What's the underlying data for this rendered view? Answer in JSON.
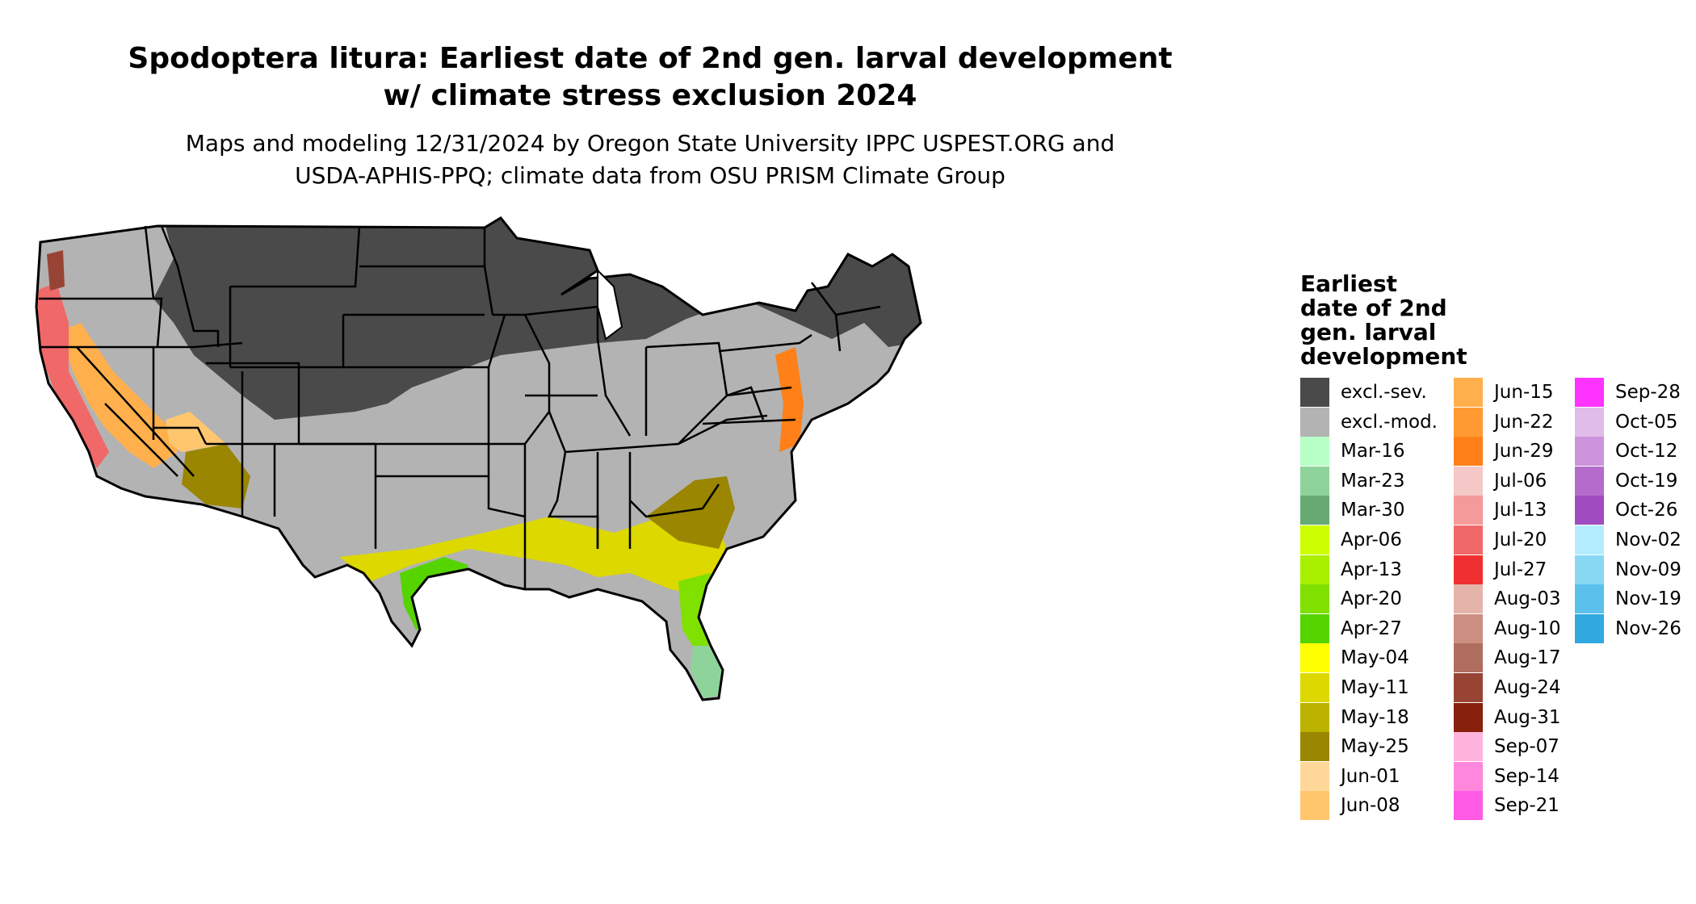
{
  "header": {
    "title_line1": "Spodoptera litura: Earliest date of 2nd gen. larval development",
    "title_line2": "w/ climate stress exclusion 2024",
    "subtitle_line1": "Maps and modeling 12/31/2024 by Oregon State University IPPC USPEST.ORG and",
    "subtitle_line2": "USDA-APHIS-PPQ; climate data from OSU PRISM Climate Group"
  },
  "legend": {
    "title_lines": [
      "Earliest",
      "date of 2nd",
      "gen. larval",
      "development"
    ],
    "columns": [
      [
        {
          "label": "excl.-sev.",
          "color": "#4a4a4a"
        },
        {
          "label": "excl.-mod.",
          "color": "#b3b3b3"
        },
        {
          "label": "Mar-16",
          "color": "#b8ffc6"
        },
        {
          "label": "Mar-23",
          "color": "#8ed49a"
        },
        {
          "label": "Mar-30",
          "color": "#66aa72"
        },
        {
          "label": "Apr-06",
          "color": "#ccff00"
        },
        {
          "label": "Apr-13",
          "color": "#a8f000"
        },
        {
          "label": "Apr-20",
          "color": "#80e000"
        },
        {
          "label": "Apr-27",
          "color": "#55d400"
        },
        {
          "label": "May-04",
          "color": "#ffff00"
        },
        {
          "label": "May-11",
          "color": "#dcd800"
        },
        {
          "label": "May-18",
          "color": "#bcb300"
        },
        {
          "label": "May-25",
          "color": "#9a8600"
        },
        {
          "label": "Jun-01",
          "color": "#ffd899"
        },
        {
          "label": "Jun-08",
          "color": "#ffc66e"
        }
      ],
      [
        {
          "label": "Jun-15",
          "color": "#ffb04d"
        },
        {
          "label": "Jun-22",
          "color": "#ff9a33"
        },
        {
          "label": "Jun-29",
          "color": "#ff8018"
        },
        {
          "label": "Jul-06",
          "color": "#f5c8c8"
        },
        {
          "label": "Jul-13",
          "color": "#f59a9a"
        },
        {
          "label": "Jul-20",
          "color": "#f06868"
        },
        {
          "label": "Jul-27",
          "color": "#f03030"
        },
        {
          "label": "Aug-03",
          "color": "#e4b4aa"
        },
        {
          "label": "Aug-10",
          "color": "#cc8e80"
        },
        {
          "label": "Aug-17",
          "color": "#b06e60"
        },
        {
          "label": "Aug-24",
          "color": "#984434"
        },
        {
          "label": "Aug-31",
          "color": "#88200e"
        },
        {
          "label": "Sep-07",
          "color": "#ffb4de"
        },
        {
          "label": "Sep-14",
          "color": "#ff88dc"
        },
        {
          "label": "Sep-21",
          "color": "#ff5ae6"
        }
      ],
      [
        {
          "label": "Sep-28",
          "color": "#ff33ff"
        },
        {
          "label": "Oct-05",
          "color": "#e0bce8"
        },
        {
          "label": "Oct-12",
          "color": "#cc94dc"
        },
        {
          "label": "Oct-19",
          "color": "#b46ccc"
        },
        {
          "label": "Oct-26",
          "color": "#a04cc0"
        },
        {
          "label": "Nov-02",
          "color": "#b4ecff"
        },
        {
          "label": "Nov-09",
          "color": "#88d8f4"
        },
        {
          "label": "Nov-19",
          "color": "#5cc0ec"
        },
        {
          "label": "Nov-26",
          "color": "#30a8e0"
        }
      ]
    ]
  },
  "map": {
    "outline_color": "#000000",
    "regions": [
      {
        "name": "north-band",
        "category": "excl.-sev."
      },
      {
        "name": "central-band",
        "category": "excl.-mod."
      },
      {
        "name": "gulf-coast",
        "category": "May-11"
      },
      {
        "name": "south-texas",
        "category": "Apr-27"
      },
      {
        "name": "florida-peninsula",
        "category": "Apr-20"
      },
      {
        "name": "south-florida",
        "category": "Mar-23"
      },
      {
        "name": "california-valley",
        "category": "Jun-15"
      },
      {
        "name": "arizona-desert",
        "category": "May-25"
      },
      {
        "name": "atlantic-coast",
        "category": "Jun-29"
      }
    ]
  }
}
